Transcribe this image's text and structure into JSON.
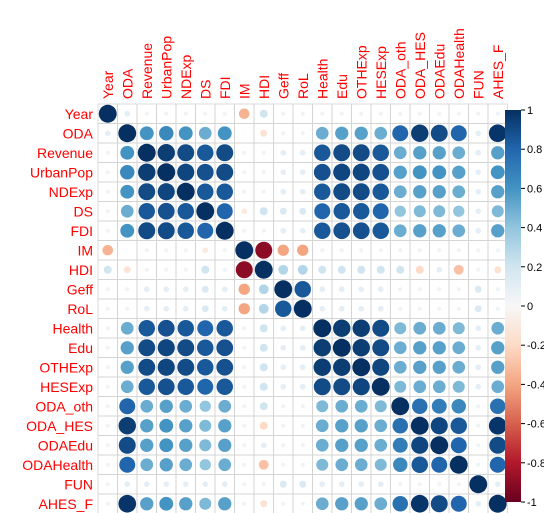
{
  "chart_data": {
    "type": "heatmap",
    "style": "circle-correlation-matrix",
    "variables": [
      "Year",
      "ODA",
      "Revenue",
      "UrbanPop",
      "NDExp",
      "DS",
      "FDI",
      "IM",
      "HDI",
      "Geff",
      "RoL",
      "Health",
      "Edu",
      "OTHExp",
      "HESExp",
      "ODA_oth",
      "ODA_HES",
      "ODAEdu",
      "ODAHealth",
      "FUN",
      "AHES_F"
    ],
    "label_color": "#ff0000",
    "colorbar_ticks": [
      "1",
      "0.8",
      "0.6",
      "0.4",
      "0.2",
      "0",
      "-0.2",
      "-0.4",
      "-0.6",
      "-0.8",
      "-1"
    ],
    "colorbar_range": [
      -1,
      1
    ],
    "colors": {
      "negative": "#67001f",
      "neutral": "#f7f7f7",
      "positive": "#053061",
      "grid": "#d3d3d3"
    },
    "values": [
      [
        1.0,
        0.1,
        0.05,
        0.05,
        0.05,
        0.05,
        0.05,
        -0.35,
        0.2,
        0.05,
        0.05,
        0.05,
        0.05,
        0.05,
        0.05,
        0.05,
        0.05,
        0.05,
        0.05,
        0.05,
        0.05
      ],
      [
        0.1,
        1.0,
        0.6,
        0.65,
        0.6,
        0.5,
        0.6,
        0.0,
        -0.15,
        0.05,
        0.05,
        0.5,
        0.55,
        0.55,
        0.5,
        0.8,
        0.95,
        0.9,
        0.8,
        0.1,
        0.98
      ],
      [
        0.05,
        0.6,
        1.0,
        0.95,
        0.9,
        0.85,
        0.9,
        0.05,
        0.05,
        0.1,
        0.1,
        0.85,
        0.9,
        0.9,
        0.85,
        0.5,
        0.55,
        0.55,
        0.5,
        0.1,
        0.55
      ],
      [
        0.05,
        0.65,
        0.95,
        1.0,
        0.92,
        0.88,
        0.9,
        0.05,
        0.05,
        0.1,
        0.1,
        0.88,
        0.92,
        0.92,
        0.88,
        0.55,
        0.6,
        0.6,
        0.55,
        0.1,
        0.6
      ],
      [
        0.05,
        0.6,
        0.9,
        0.92,
        1.0,
        0.85,
        0.85,
        0.05,
        0.05,
        0.1,
        0.1,
        0.85,
        0.9,
        0.9,
        0.85,
        0.5,
        0.55,
        0.55,
        0.5,
        0.1,
        0.55
      ],
      [
        0.05,
        0.5,
        0.85,
        0.88,
        0.85,
        1.0,
        0.8,
        -0.1,
        0.2,
        0.15,
        0.15,
        0.8,
        0.85,
        0.85,
        0.8,
        0.4,
        0.45,
        0.45,
        0.4,
        0.1,
        0.45
      ],
      [
        0.05,
        0.6,
        0.9,
        0.9,
        0.85,
        0.8,
        1.0,
        0.05,
        0.05,
        0.1,
        0.1,
        0.85,
        0.88,
        0.88,
        0.85,
        0.5,
        0.55,
        0.55,
        0.5,
        0.1,
        0.55
      ],
      [
        -0.35,
        0.0,
        0.05,
        0.05,
        0.05,
        -0.1,
        0.05,
        1.0,
        -0.9,
        -0.4,
        -0.4,
        0.05,
        0.05,
        0.05,
        0.05,
        0.05,
        0.05,
        0.05,
        0.05,
        0.05,
        0.05
      ],
      [
        0.2,
        -0.15,
        0.05,
        0.05,
        0.05,
        0.2,
        0.05,
        -0.9,
        1.0,
        0.3,
        0.3,
        0.2,
        0.2,
        0.2,
        0.2,
        0.2,
        -0.2,
        0.1,
        -0.3,
        0.05,
        -0.15
      ],
      [
        0.05,
        0.05,
        0.1,
        0.1,
        0.1,
        0.15,
        0.1,
        -0.4,
        0.3,
        1.0,
        0.85,
        0.1,
        0.1,
        0.1,
        0.1,
        0.05,
        0.05,
        0.05,
        0.05,
        0.15,
        0.05
      ],
      [
        0.05,
        0.05,
        0.1,
        0.1,
        0.1,
        0.15,
        0.1,
        -0.4,
        0.3,
        0.85,
        1.0,
        0.1,
        0.1,
        0.1,
        0.1,
        0.05,
        0.05,
        0.05,
        0.05,
        0.15,
        0.05
      ],
      [
        0.05,
        0.5,
        0.85,
        0.88,
        0.85,
        0.8,
        0.85,
        0.05,
        0.2,
        0.1,
        0.1,
        1.0,
        0.95,
        0.95,
        0.9,
        0.45,
        0.5,
        0.5,
        0.45,
        0.1,
        0.5
      ],
      [
        0.05,
        0.55,
        0.9,
        0.92,
        0.9,
        0.85,
        0.88,
        0.05,
        0.2,
        0.1,
        0.1,
        0.95,
        1.0,
        0.95,
        0.9,
        0.5,
        0.55,
        0.55,
        0.5,
        0.1,
        0.55
      ],
      [
        0.05,
        0.55,
        0.9,
        0.92,
        0.9,
        0.85,
        0.88,
        0.05,
        0.2,
        0.1,
        0.1,
        0.95,
        0.95,
        1.0,
        0.92,
        0.5,
        0.55,
        0.55,
        0.5,
        0.1,
        0.55
      ],
      [
        0.05,
        0.5,
        0.85,
        0.88,
        0.85,
        0.8,
        0.85,
        0.05,
        0.2,
        0.1,
        0.1,
        0.9,
        0.9,
        0.92,
        1.0,
        0.45,
        0.5,
        0.5,
        0.45,
        0.1,
        0.5
      ],
      [
        0.05,
        0.8,
        0.5,
        0.55,
        0.5,
        0.4,
        0.5,
        0.05,
        0.2,
        0.05,
        0.05,
        0.45,
        0.5,
        0.5,
        0.45,
        1.0,
        0.75,
        0.7,
        0.65,
        0.05,
        0.75
      ],
      [
        0.05,
        0.95,
        0.55,
        0.6,
        0.55,
        0.45,
        0.55,
        0.05,
        -0.2,
        0.05,
        0.05,
        0.5,
        0.55,
        0.55,
        0.5,
        0.75,
        1.0,
        0.92,
        0.85,
        0.05,
        0.98
      ],
      [
        0.05,
        0.9,
        0.55,
        0.6,
        0.55,
        0.45,
        0.55,
        0.05,
        0.1,
        0.05,
        0.05,
        0.5,
        0.55,
        0.55,
        0.5,
        0.7,
        0.92,
        1.0,
        0.8,
        0.05,
        0.9
      ],
      [
        0.05,
        0.8,
        0.5,
        0.55,
        0.5,
        0.4,
        0.5,
        0.05,
        -0.3,
        0.05,
        0.05,
        0.45,
        0.5,
        0.5,
        0.45,
        0.65,
        0.85,
        0.8,
        1.0,
        0.05,
        0.8
      ],
      [
        0.05,
        0.1,
        0.1,
        0.1,
        0.1,
        0.1,
        0.1,
        0.05,
        0.05,
        0.15,
        0.15,
        0.1,
        0.1,
        0.1,
        0.1,
        0.05,
        0.05,
        0.05,
        0.05,
        1.0,
        0.1
      ],
      [
        0.05,
        0.98,
        0.55,
        0.6,
        0.55,
        0.45,
        0.55,
        0.05,
        -0.15,
        0.05,
        0.05,
        0.5,
        0.55,
        0.55,
        0.5,
        0.75,
        0.98,
        0.9,
        0.8,
        0.1,
        1.0
      ]
    ]
  }
}
